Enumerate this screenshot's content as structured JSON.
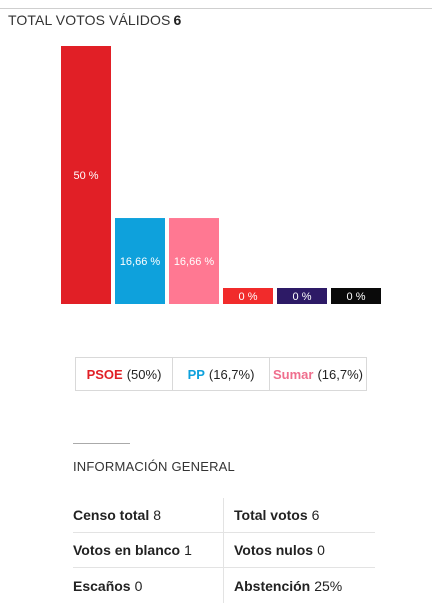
{
  "header": {
    "title": "TOTAL VOTOS VÁLIDOS",
    "count": "6"
  },
  "legend": [
    {
      "party": "PSOE",
      "pct": "(50%)",
      "color": "#e11f26"
    },
    {
      "party": "PP",
      "pct": "(16,7%)",
      "color": "#0ea1dc"
    },
    {
      "party": "Sumar",
      "pct": "(16,7%)",
      "color": "#ef6e8d"
    }
  ],
  "info": {
    "title": "INFORMACIÓN GENERAL",
    "rows": [
      [
        {
          "label": "Censo total",
          "value": "8"
        },
        {
          "label": "Total votos",
          "value": "6"
        }
      ],
      [
        {
          "label": "Votos en blanco",
          "value": "1"
        },
        {
          "label": "Votos nulos",
          "value": "0"
        }
      ],
      [
        {
          "label": "Escaños",
          "value": "0"
        },
        {
          "label": "Abstención",
          "value": "25%"
        }
      ]
    ]
  },
  "chart_data": {
    "type": "bar",
    "categories": [
      "PSOE",
      "PP",
      "Sumar",
      "",
      "",
      ""
    ],
    "values": [
      50,
      16.66,
      16.66,
      0,
      0,
      0
    ],
    "labels": [
      "50 %",
      "16,66 %",
      "16,66 %",
      "0 %",
      "0 %",
      "0 %"
    ],
    "colors": [
      "#e11f26",
      "#0ea1dc",
      "#ff7892",
      "#f12b2b",
      "#2d1a66",
      "#0a0a0a"
    ],
    "ylim": [
      0,
      50
    ],
    "grid": false
  }
}
